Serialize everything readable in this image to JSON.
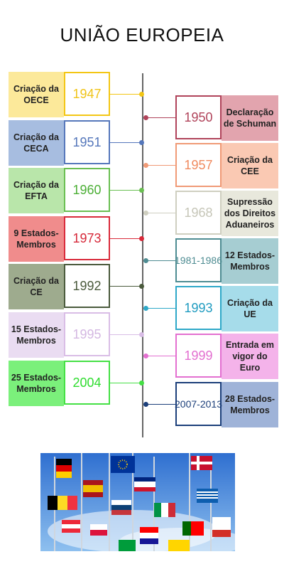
{
  "title": "UNIÃO EUROPEIA",
  "left_events": [
    {
      "label": "Criação da OECE",
      "year": "1947",
      "color": "#f3c614",
      "bg": "#fce99a",
      "year_color": "#f0c419"
    },
    {
      "label": "Criação da CECA",
      "year": "1951",
      "color": "#5577bb",
      "bg": "#a7bde0",
      "year_color": "#5577bb"
    },
    {
      "label": "Criação da EFTA",
      "year": "1960",
      "color": "#6abf52",
      "bg": "#b9e6aa",
      "year_color": "#4caf36"
    },
    {
      "label": "9 Estados-Membros",
      "year": "1973",
      "color": "#d92a3a",
      "bg": "#f08c8c",
      "year_color": "#d62839"
    },
    {
      "label": "Criação da CE",
      "year": "1992",
      "color": "#4a5a3c",
      "bg": "#9eab8e",
      "year_color": "#4a5a3c"
    },
    {
      "label": "15 Estados-Membros",
      "year": "1995",
      "color": "#d9bde6",
      "bg": "#eadcf2",
      "year_color": "#d4b8e2"
    },
    {
      "label": "25 Estados-Membros",
      "year": "2004",
      "color": "#44e044",
      "bg": "#7bf07b",
      "year_color": "#2fdc2f"
    }
  ],
  "right_events": [
    {
      "label": "Declaração de Schuman",
      "year": "1950",
      "color": "#b0435a",
      "bg": "#e2a4ae",
      "year_color": "#b0435a"
    },
    {
      "label": "Criação da CEE",
      "year": "1957",
      "color": "#f09a76",
      "bg": "#fac9b3",
      "year_color": "#f08a5f"
    },
    {
      "label": "Supressão dos Direitos Aduaneiros",
      "year": "1968",
      "color": "#cfcfc0",
      "bg": "#e8e8dc",
      "year_color": "#c6c6b8"
    },
    {
      "label": "12 Estados-Membros",
      "year_lines": [
        "1981",
        "-",
        "1986"
      ],
      "color": "#4e8c92",
      "bg": "#a6cdd2",
      "year_color": "#4e8c92"
    },
    {
      "label": "Criação da UE",
      "year": "1993",
      "color": "#2ea8c8",
      "bg": "#a6dcea",
      "year_color": "#1f9bc0"
    },
    {
      "label": "Entrada em vigor do Euro",
      "year": "1999",
      "color": "#e36fd0",
      "bg": "#f4b3ea",
      "year_color": "#e36fd0"
    },
    {
      "label": "28 Estados-Membros",
      "year_lines": [
        "2007",
        "-",
        "2013"
      ],
      "color": "#1c3f7a",
      "bg": "#9fb3d8",
      "year_color": "#1c3f7a"
    }
  ],
  "image": {
    "icon": "eu-flags-photo"
  }
}
